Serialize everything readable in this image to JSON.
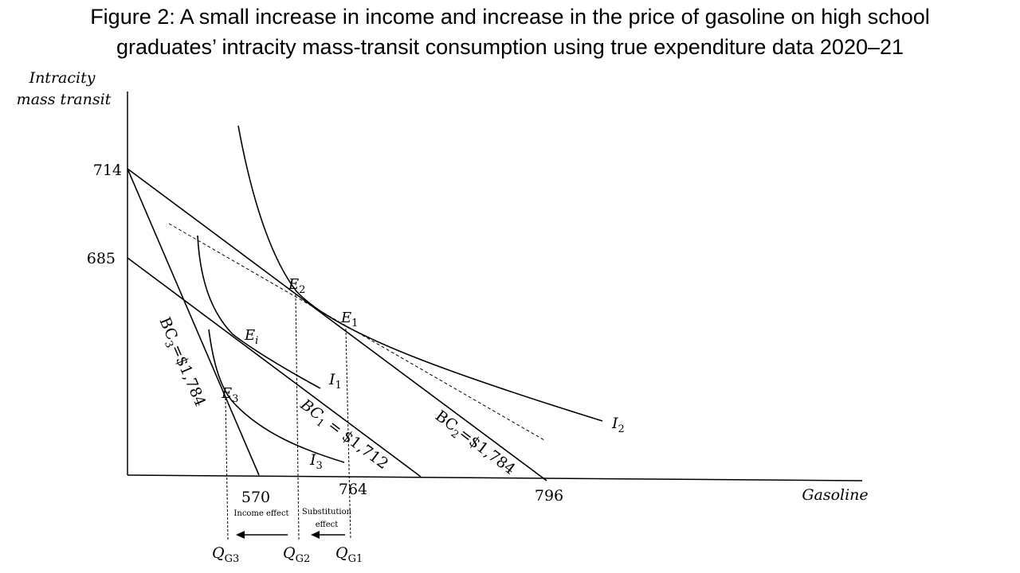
{
  "title_line1": "Figure 2: A small increase in income and increase in the price of gasoline on high school",
  "title_line2": "graduates’ intracity mass-transit consumption using true expenditure data 2020–21",
  "y_axis_label_line1": "Intracity",
  "y_axis_label_line2": "mass transit",
  "x_axis_label": "Gasoline",
  "y_ticks": [
    "714",
    "685"
  ],
  "x_ticks": [
    "570",
    "764",
    "796"
  ],
  "budget_constraints": [
    {
      "label": "BC",
      "sub": "1",
      "text": " = $1,712"
    },
    {
      "label": "BC",
      "sub": "2",
      "text": "=$1,784"
    },
    {
      "label": "BC",
      "sub": "3",
      "text": "=$1,784"
    }
  ],
  "indifference_curves": [
    {
      "label": "I",
      "sub": "1"
    },
    {
      "label": "I",
      "sub": "2"
    },
    {
      "label": "I",
      "sub": "3"
    }
  ],
  "equilibria": [
    {
      "label": "E",
      "sub": "1"
    },
    {
      "label": "E",
      "sub": "2"
    },
    {
      "label": "E",
      "sub": "3"
    },
    {
      "label": "E",
      "sub": "i"
    }
  ],
  "quantities": [
    {
      "label": "Q",
      "sub": "G3"
    },
    {
      "label": "Q",
      "sub": "G2"
    },
    {
      "label": "Q",
      "sub": "G1"
    }
  ],
  "effects": {
    "income": "Income effect",
    "substitution_line1": "Substitution",
    "substitution_line2": "effect"
  },
  "colors": {
    "ink": "#000000",
    "background": "#ffffff"
  }
}
